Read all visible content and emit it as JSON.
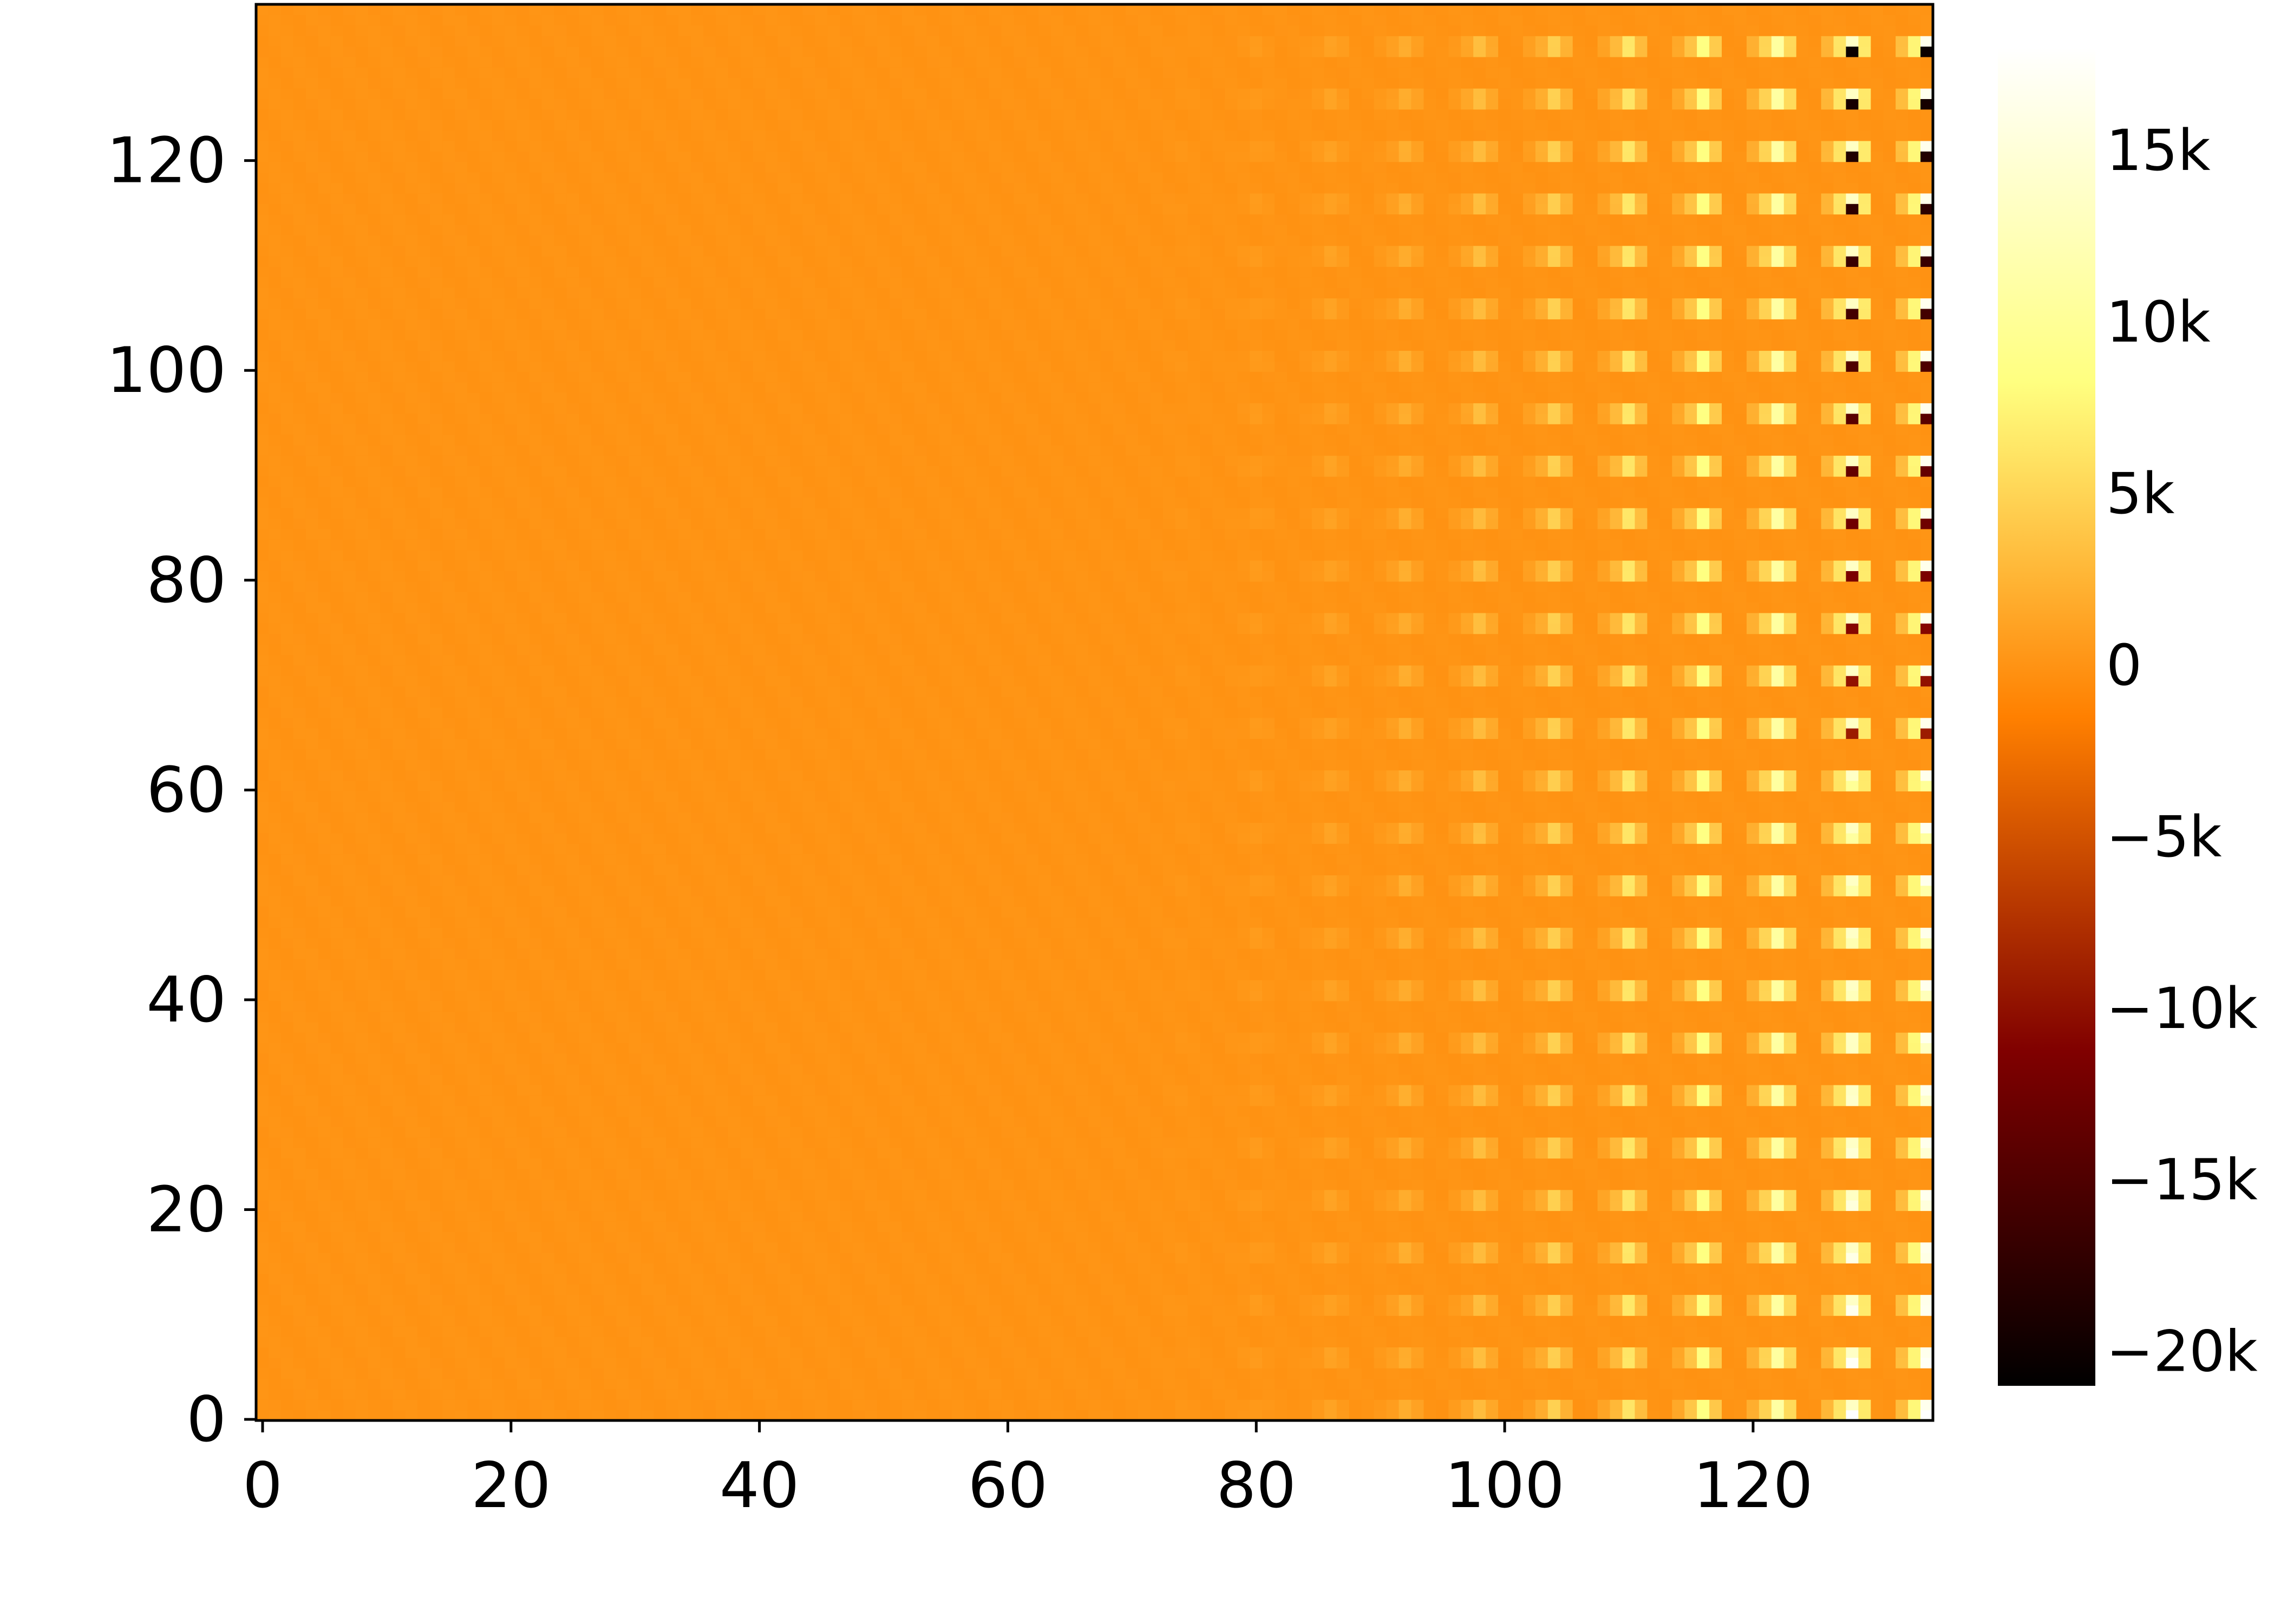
{
  "chart_data": {
    "type": "heatmap",
    "title": "",
    "xlabel": "",
    "ylabel": "",
    "x_range": [
      0,
      135
    ],
    "y_range": [
      0,
      135
    ],
    "x_ticks": [
      0,
      20,
      40,
      60,
      80,
      100,
      120
    ],
    "y_ticks": [
      0,
      20,
      40,
      60,
      80,
      100,
      120
    ],
    "x_tick_labels": [
      "0",
      "20",
      "40",
      "60",
      "80",
      "100",
      "120"
    ],
    "y_tick_labels": [
      "0",
      "20",
      "40",
      "60",
      "80",
      "100",
      "120"
    ],
    "colormap": "afmhot",
    "colorbar": {
      "range": [
        -21000,
        18000
      ],
      "ticks": [
        -20000,
        -15000,
        -10000,
        -5000,
        0,
        5000,
        10000,
        15000
      ],
      "tick_labels": [
        "−20k",
        "−15k",
        "−10k",
        "−5k",
        "0",
        "5k",
        "10k",
        "15k"
      ]
    },
    "pattern": {
      "baseline": 0,
      "column_period": 6,
      "row_period": 5,
      "active_from_column": 66,
      "strongest_columns": [
        128,
        134
      ],
      "max_value": 18000,
      "min_value": -21000,
      "description_of_values": "near-zero everywhere; periodic positive spikes at the right that grow toward x=135, with negative spikes in the upper rows of the last columns"
    }
  }
}
